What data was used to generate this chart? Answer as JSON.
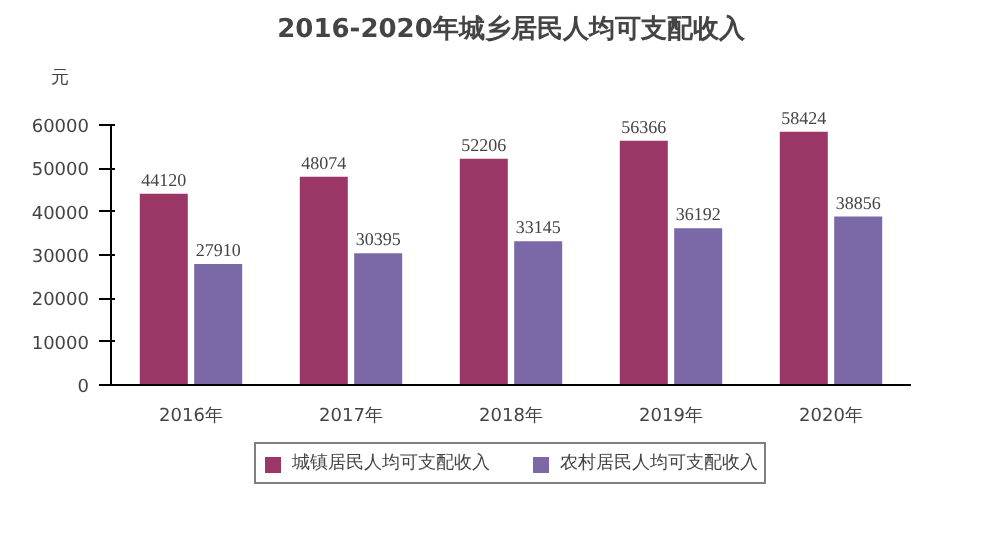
{
  "chart_data": {
    "type": "bar",
    "title": "2016-2020年城乡居民人均可支配收入",
    "ylabel": "元",
    "categories": [
      "2016年",
      "2017年",
      "2018年",
      "2019年",
      "2020年"
    ],
    "series": [
      {
        "name": "城镇居民人均可支配收入",
        "color": "#9b3766",
        "values": [
          44120,
          48074,
          52206,
          56366,
          58424
        ]
      },
      {
        "name": "农村居民人均可支配收入",
        "color": "#7b68a6",
        "values": [
          27910,
          30395,
          33145,
          36192,
          38856
        ]
      }
    ],
    "ylim": [
      0,
      60000
    ],
    "yticks": [
      0,
      10000,
      20000,
      30000,
      40000,
      50000,
      60000
    ],
    "data_labels": true,
    "grid": false,
    "legend": "bottom"
  }
}
